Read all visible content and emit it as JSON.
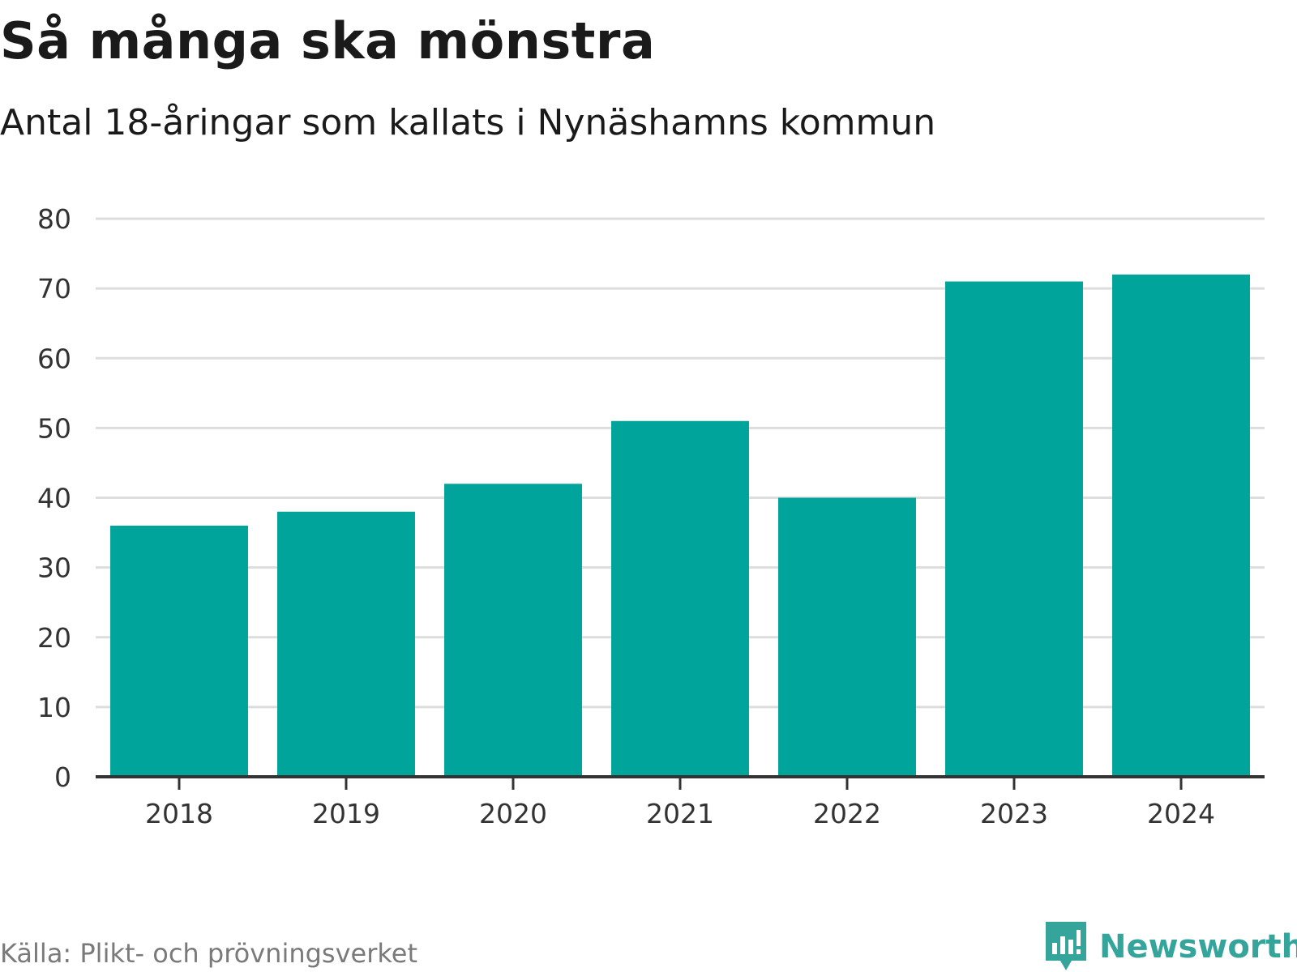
{
  "colors": {
    "bar": "#00a49a",
    "grid": "#dddddd",
    "axis": "#333333",
    "text": "#1a1a1a",
    "tick": "#333333",
    "source": "#7a7a7a",
    "brand": "#35a59b"
  },
  "header": {
    "title": "Så många ska mönstra",
    "subtitle": "Antal 18-åringar som kallats i Nynäshamns kommun"
  },
  "footer": {
    "source": "Källa: Plikt- och prövningsverket",
    "brand_name": "Newsworthy",
    "brand_icon": "newsworthy-logo-icon"
  },
  "chart_data": {
    "type": "bar",
    "title": "Så många ska mönstra",
    "subtitle": "Antal 18-åringar som kallats i Nynäshamns kommun",
    "xlabel": "",
    "ylabel": "",
    "categories": [
      "2018",
      "2019",
      "2020",
      "2021",
      "2022",
      "2023",
      "2024"
    ],
    "values": [
      36,
      38,
      42,
      51,
      40,
      71,
      72
    ],
    "ylim": [
      0,
      80
    ],
    "yticks": [
      0,
      10,
      20,
      30,
      40,
      50,
      60,
      70,
      80
    ],
    "grid": true,
    "legend": "none"
  }
}
